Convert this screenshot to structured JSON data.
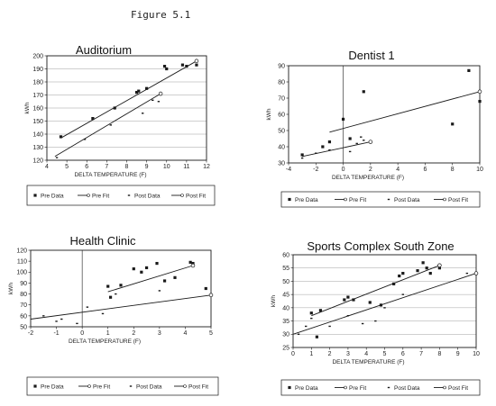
{
  "figure_label": "Figure 5.1",
  "colors": {
    "ink": "#1a1a1a",
    "background": "#ffffff"
  },
  "chart_data": [
    {
      "type": "scatter",
      "title": "Auditorium",
      "xlabel": "DELTA TEMPERATURE (F)",
      "ylabel": "kWh",
      "xlim": [
        4,
        12
      ],
      "ylim": [
        120,
        200
      ],
      "xticks": [
        4,
        5,
        6,
        7,
        8,
        9,
        10,
        11,
        12
      ],
      "yticks": [
        120,
        130,
        140,
        150,
        160,
        170,
        180,
        190,
        200
      ],
      "grid": true,
      "legend": [
        "Pre Data",
        "Pre Fit",
        "Post Data",
        "Post Fit"
      ],
      "series": [
        {
          "name": "Pre Data",
          "kind": "points",
          "x": [
            4.7,
            6.3,
            7.4,
            8.5,
            8.6,
            9.0,
            9.9,
            10.0,
            10.8,
            11.0,
            11.5
          ],
          "y": [
            138,
            152,
            160,
            172,
            173,
            175,
            192,
            190,
            193,
            192,
            193
          ]
        },
        {
          "name": "Pre Fit",
          "kind": "fit",
          "x": [
            4.7,
            11.5
          ],
          "y": [
            137,
            196
          ]
        },
        {
          "name": "Post Data",
          "kind": "points",
          "x": [
            4.5,
            5.9,
            7.2,
            8.8,
            9.3,
            9.6,
            9.7
          ],
          "y": [
            122,
            136,
            147,
            156,
            166,
            165,
            170
          ]
        },
        {
          "name": "Post Fit",
          "kind": "fit",
          "x": [
            4.4,
            9.7
          ],
          "y": [
            123,
            171
          ]
        }
      ]
    },
    {
      "type": "scatter",
      "title": "Dentist 1",
      "xlabel": "DELTA TEMPERATURE (F)",
      "ylabel": "kWh",
      "xlim": [
        -4,
        10
      ],
      "ylim": [
        30,
        90
      ],
      "xticks": [
        -4,
        -2,
        0,
        2,
        4,
        6,
        8,
        10
      ],
      "yticks": [
        30,
        40,
        50,
        60,
        70,
        80,
        90
      ],
      "grid": false,
      "zero_line": true,
      "legend": [
        "Pre Data",
        "Pre Fit",
        "Post Data",
        "Post Fit"
      ],
      "series": [
        {
          "name": "Pre Data",
          "kind": "points",
          "x": [
            -3.0,
            -1.5,
            -1.0,
            0.0,
            0.5,
            1.5,
            8.0,
            9.2,
            10.0
          ],
          "y": [
            35,
            40,
            43,
            57,
            45,
            74,
            54,
            87,
            68
          ]
        },
        {
          "name": "Pre Fit",
          "kind": "fit",
          "x": [
            -1.0,
            10.0
          ],
          "y": [
            49,
            74
          ]
        },
        {
          "name": "Post Data",
          "kind": "points",
          "x": [
            -3.0,
            -2.0,
            -1.0,
            0.5,
            1.0,
            1.3,
            1.5
          ],
          "y": [
            33,
            36,
            38,
            37,
            42,
            46,
            44
          ]
        },
        {
          "name": "Post Fit",
          "kind": "fit",
          "x": [
            -3.0,
            2.0
          ],
          "y": [
            34,
            43
          ]
        }
      ]
    },
    {
      "type": "scatter",
      "title": "Health Clinic",
      "xlabel": "DELTA TEMPERATURE (F)",
      "ylabel": "kWh",
      "xlim": [
        -2,
        5
      ],
      "ylim": [
        50,
        120
      ],
      "xticks": [
        -2,
        -1,
        0,
        1,
        2,
        3,
        4,
        5
      ],
      "yticks": [
        50,
        60,
        70,
        80,
        90,
        100,
        110,
        120
      ],
      "grid": false,
      "zero_line": true,
      "legend": [
        "Pre Data",
        "Pre Fit",
        "Post Data",
        "Post Fit"
      ],
      "series": [
        {
          "name": "Pre Data",
          "kind": "points",
          "x": [
            1.0,
            1.1,
            1.5,
            2.0,
            2.3,
            2.5,
            2.9,
            3.2,
            3.6,
            4.2,
            4.3,
            4.8
          ],
          "y": [
            87,
            77,
            88,
            103,
            100,
            104,
            108,
            92,
            95,
            109,
            108,
            85
          ]
        },
        {
          "name": "Pre Fit",
          "kind": "fit",
          "x": [
            1.0,
            4.3
          ],
          "y": [
            82,
            106
          ]
        },
        {
          "name": "Post Data",
          "kind": "points",
          "x": [
            -1.5,
            -1.0,
            -0.8,
            -0.2,
            0.2,
            0.8,
            1.3,
            3.0
          ],
          "y": [
            60,
            55,
            57,
            53,
            68,
            62,
            80,
            83
          ]
        },
        {
          "name": "Post Fit",
          "kind": "fit",
          "x": [
            -2.0,
            5.0
          ],
          "y": [
            57,
            79
          ]
        }
      ]
    },
    {
      "type": "scatter",
      "title": "Sports Complex South Zone",
      "xlabel": "DELTA TEMPERATURE (F)",
      "ylabel": "kWh",
      "xlim": [
        0,
        10
      ],
      "ylim": [
        25,
        60
      ],
      "xticks": [
        0,
        1,
        2,
        3,
        4,
        5,
        6,
        7,
        8,
        9,
        10
      ],
      "yticks": [
        25,
        30,
        35,
        40,
        45,
        50,
        55,
        60
      ],
      "grid": true,
      "legend": [
        "Pre Data",
        "Pre Fit",
        "Post Data",
        "Post Fit"
      ],
      "series": [
        {
          "name": "Pre Data",
          "kind": "points",
          "x": [
            1.0,
            1.3,
            1.5,
            2.8,
            3.0,
            3.3,
            4.2,
            4.8,
            5.5,
            5.8,
            6.0,
            6.8,
            7.1,
            7.3,
            7.5,
            8.0
          ],
          "y": [
            38,
            29,
            39,
            43,
            44,
            43,
            42,
            41,
            49,
            52,
            53,
            54,
            57,
            55,
            53,
            55
          ]
        },
        {
          "name": "Pre Fit",
          "kind": "fit",
          "x": [
            1.0,
            8.0
          ],
          "y": [
            37,
            56
          ]
        },
        {
          "name": "Post Data",
          "kind": "points",
          "x": [
            0.3,
            0.7,
            1.0,
            2.0,
            3.0,
            3.8,
            4.5,
            5.0,
            6.0,
            9.5
          ],
          "y": [
            30,
            33,
            36,
            33,
            37,
            34,
            35,
            40,
            45,
            53
          ]
        },
        {
          "name": "Post Fit",
          "kind": "fit",
          "x": [
            0.0,
            10.0
          ],
          "y": [
            30,
            53
          ]
        }
      ]
    }
  ]
}
